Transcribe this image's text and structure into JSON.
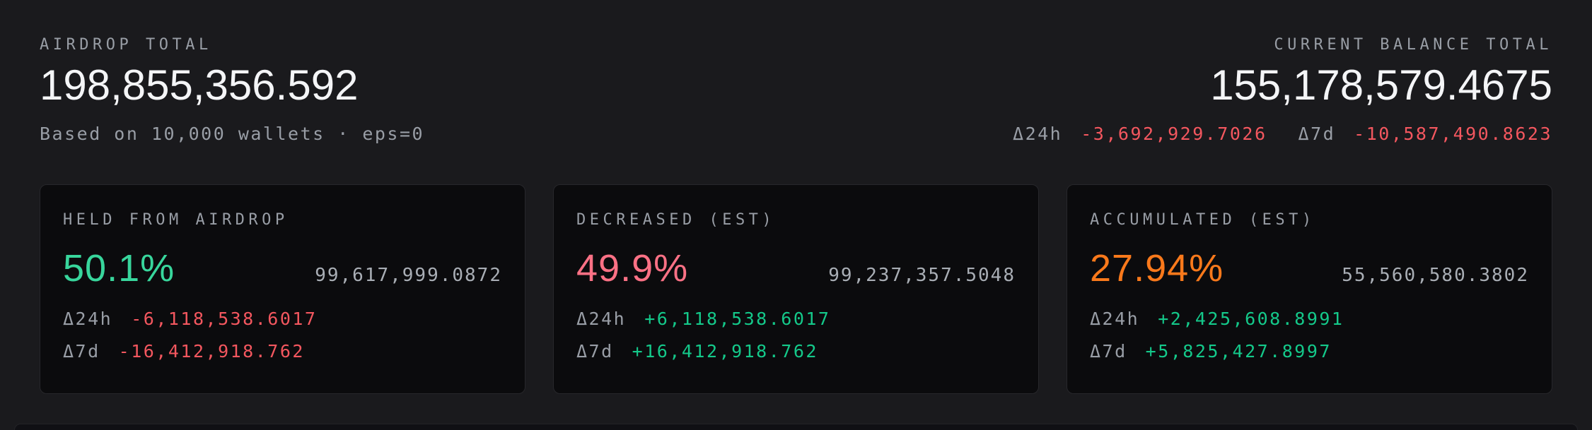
{
  "header": {
    "airdrop": {
      "label": "AIRDROP TOTAL",
      "value": "198,855,356.592",
      "subtitle": "Based on 10,000 wallets · eps=0"
    },
    "balance": {
      "label": "CURRENT BALANCE TOTAL",
      "value": "155,178,579.4675",
      "deltas": [
        {
          "label": "Δ24h",
          "value": "-3,692,929.7026",
          "direction": "down"
        },
        {
          "label": "Δ7d",
          "value": "-10,587,490.8623",
          "direction": "down"
        }
      ]
    }
  },
  "cards": [
    {
      "title": "HELD FROM AIRDROP",
      "percent": "50.1%",
      "tone": "green",
      "value": "99,617,999.0872",
      "deltas": [
        {
          "label": "Δ24h",
          "value": "-6,118,538.6017",
          "direction": "down"
        },
        {
          "label": "Δ7d",
          "value": "-16,412,918.762",
          "direction": "down"
        }
      ]
    },
    {
      "title": "DECREASED (EST)",
      "percent": "49.9%",
      "tone": "rose",
      "value": "99,237,357.5048",
      "deltas": [
        {
          "label": "Δ24h",
          "value": "+6,118,538.6017",
          "direction": "up"
        },
        {
          "label": "Δ7d",
          "value": "+16,412,918.762",
          "direction": "up"
        }
      ]
    },
    {
      "title": "ACCUMULATED (EST)",
      "percent": "27.94%",
      "tone": "orange",
      "value": "55,560,580.3802",
      "deltas": [
        {
          "label": "Δ24h",
          "value": "+2,425,608.8991",
          "direction": "up"
        },
        {
          "label": "Δ7d",
          "value": "+5,825,427.8997",
          "direction": "up"
        }
      ]
    }
  ],
  "colors": {
    "page_bg": "#1a1a1d",
    "card_bg": "#0b0b0d",
    "card_border": "#27272b",
    "label_gray": "#999ea6",
    "value_gray": "#a9aeb5",
    "white": "#f4f5f7",
    "percent_green": "#38d69c",
    "percent_rose": "#fb7185",
    "percent_orange": "#f9791b",
    "delta_up": "#14c98a",
    "delta_down": "#f4575f"
  }
}
